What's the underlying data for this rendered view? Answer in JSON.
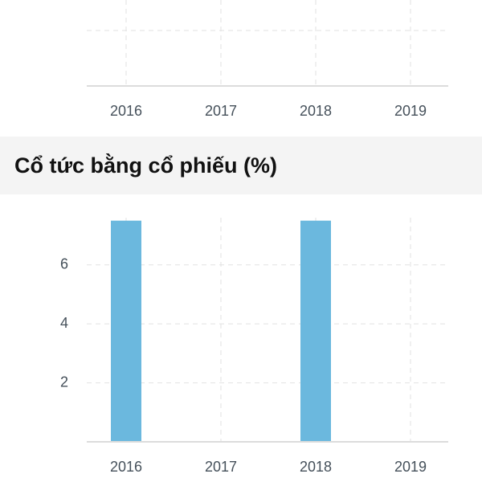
{
  "chart_data": [
    {
      "type": "bar",
      "categories": [
        "2016",
        "2017",
        "2018",
        "2019"
      ]
    },
    {
      "type": "bar",
      "title": "Cổ tức bằng cổ phiếu (%)",
      "categories": [
        "2016",
        "2017",
        "2018",
        "2019"
      ],
      "values": [
        7.5,
        0,
        7.5,
        0
      ],
      "color": "#6bb8de",
      "ylim": [
        0,
        7.6
      ],
      "yticks": [
        2,
        4,
        6
      ],
      "grid": true
    }
  ]
}
